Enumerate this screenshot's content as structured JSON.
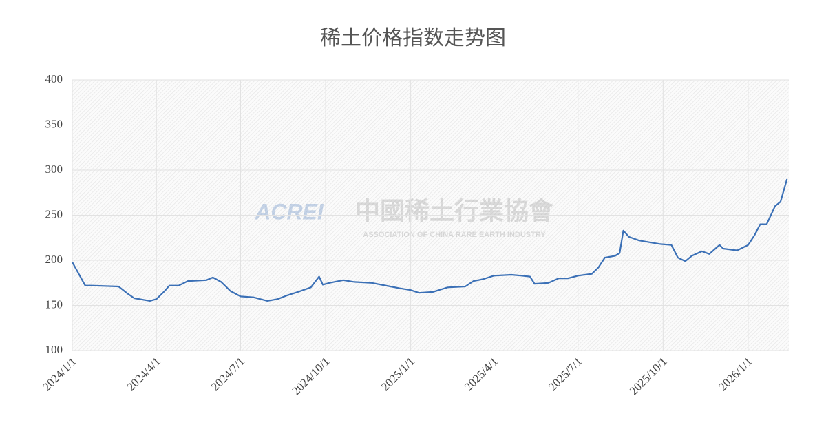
{
  "chart_data": {
    "type": "line",
    "title": "稀土价格指数走势图",
    "watermark": {
      "logo": "ACREI",
      "name": "中國稀土行業協會",
      "subtitle": "ASSOCIATION OF CHINA RARE EARTH INDUSTRY"
    },
    "x": [
      "2024/1/1",
      "2024/1/8",
      "2024/1/15",
      "2024/1/22",
      "2024/2/20",
      "2024/3/1",
      "2024/3/8",
      "2024/3/25",
      "2024/4/1",
      "2024/4/10",
      "2024/4/15",
      "2024/4/25",
      "2024/5/5",
      "2024/5/25",
      "2024/6/1",
      "2024/6/10",
      "2024/6/20",
      "2024/7/1",
      "2024/7/15",
      "2024/7/30",
      "2024/8/10",
      "2024/8/20",
      "2024/9/1",
      "2024/9/15",
      "2024/9/24",
      "2024/9/28",
      "2024/10/5",
      "2024/10/20",
      "2024/11/1",
      "2024/11/20",
      "2024/12/10",
      "2024/12/20",
      "2025/1/1",
      "2025/1/10",
      "2025/1/25",
      "2025/2/10",
      "2025/3/1",
      "2025/3/10",
      "2025/3/20",
      "2025/4/1",
      "2025/4/20",
      "2025/5/1",
      "2025/5/10",
      "2025/5/15",
      "2025/5/30",
      "2025/6/10",
      "2025/6/20",
      "2025/7/1",
      "2025/7/16",
      "2025/7/23",
      "2025/7/30",
      "2025/8/10",
      "2025/8/15",
      "2025/8/19",
      "2025/8/25",
      "2025/9/5",
      "2025/9/28",
      "2025/10/10",
      "2025/10/17",
      "2025/10/25",
      "2025/11/1",
      "2025/11/12",
      "2025/11/20",
      "2025/12/1",
      "2025/12/5",
      "2025/12/20",
      "2026/1/1",
      "2026/1/8",
      "2026/1/14",
      "2026/1/21",
      "2026/1/30",
      "2026/2/5",
      "2026/2/12"
    ],
    "series": [
      {
        "name": "稀土价格指数",
        "color": "#3b70b6",
        "values": [
          198,
          185,
          172,
          172,
          171,
          163,
          158,
          155,
          157,
          166,
          172,
          172,
          177,
          178,
          181,
          176,
          166,
          160,
          159,
          155,
          157,
          161,
          165,
          170,
          182,
          173,
          175,
          178,
          176,
          175,
          171,
          169,
          167,
          164,
          165,
          170,
          171,
          177,
          179,
          183,
          184,
          183,
          182,
          174,
          175,
          180,
          180,
          183,
          185,
          192,
          203,
          205,
          208,
          233,
          226,
          222,
          218,
          217,
          203,
          199,
          205,
          210,
          207,
          217,
          213,
          211,
          217,
          228,
          240,
          240,
          260,
          265,
          290
        ]
      }
    ],
    "xlim": [
      "2024/1/1",
      "2026/2/14"
    ],
    "xticks": [
      "2024/1/1",
      "2024/4/1",
      "2024/7/1",
      "2024/10/1",
      "2025/1/1",
      "2025/4/1",
      "2025/7/1",
      "2025/10/1",
      "2026/1/1"
    ],
    "ylim": [
      100,
      400
    ],
    "yticks": [
      100,
      150,
      200,
      250,
      300,
      350,
      400
    ],
    "grid": true
  }
}
